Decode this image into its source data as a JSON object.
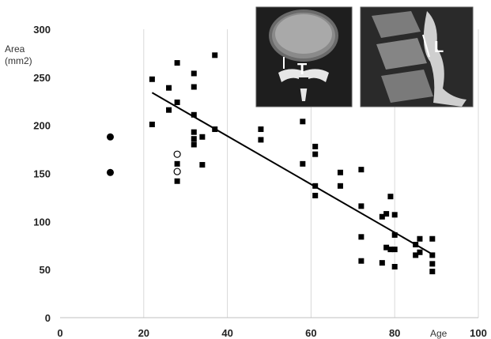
{
  "chart_data": {
    "type": "scatter",
    "title": "",
    "xlabel": "Age",
    "ylabel": "Area\n(mm2)",
    "ylabel_lines": [
      "Area",
      "(mm2)"
    ],
    "xlim": [
      0,
      100
    ],
    "ylim": [
      0,
      300
    ],
    "x_ticks": [
      0,
      20,
      40,
      60,
      80,
      100
    ],
    "y_ticks": [
      0,
      50,
      100,
      150,
      200,
      250,
      300
    ],
    "grid": "vertical",
    "legend": "none",
    "series": [
      {
        "marker": "square-filled",
        "color": "#000000",
        "points": [
          [
            22,
            248
          ],
          [
            22,
            201
          ],
          [
            26,
            239
          ],
          [
            26,
            216
          ],
          [
            28,
            265
          ],
          [
            28,
            224
          ],
          [
            28,
            160
          ],
          [
            28,
            142
          ],
          [
            32,
            254
          ],
          [
            32,
            240
          ],
          [
            32,
            211
          ],
          [
            32,
            193
          ],
          [
            32,
            186
          ],
          [
            32,
            180
          ],
          [
            34,
            188
          ],
          [
            34,
            159
          ],
          [
            37,
            273
          ],
          [
            37,
            196
          ],
          [
            48,
            196
          ],
          [
            48,
            185
          ],
          [
            58,
            204
          ],
          [
            58,
            160
          ],
          [
            61,
            178
          ],
          [
            61,
            170
          ],
          [
            61,
            137
          ],
          [
            61,
            127
          ],
          [
            67,
            151
          ],
          [
            67,
            137
          ],
          [
            72,
            154
          ],
          [
            72,
            116
          ],
          [
            72,
            84
          ],
          [
            72,
            59
          ],
          [
            77,
            105
          ],
          [
            77,
            57
          ],
          [
            78,
            108
          ],
          [
            78,
            73
          ],
          [
            79,
            126
          ],
          [
            79,
            71
          ],
          [
            80,
            107
          ],
          [
            80,
            86
          ],
          [
            80,
            71
          ],
          [
            80,
            53
          ],
          [
            85,
            76
          ],
          [
            85,
            65
          ],
          [
            86,
            82
          ],
          [
            86,
            68
          ],
          [
            89,
            82
          ],
          [
            89,
            65
          ],
          [
            89,
            56
          ],
          [
            89,
            48
          ]
        ]
      },
      {
        "marker": "circle-filled",
        "color": "#000000",
        "points": [
          [
            12,
            188
          ],
          [
            12,
            151
          ]
        ]
      },
      {
        "marker": "circle-open",
        "color": "#000000",
        "points": [
          [
            28,
            170
          ],
          [
            28,
            152
          ]
        ]
      }
    ],
    "trendline": {
      "x": [
        22,
        89
      ],
      "y": [
        234,
        66
      ],
      "color": "#000000"
    },
    "insets": [
      {
        "label": "T",
        "description_icon": "axial-ct-vertebra-icon"
      },
      {
        "label": "L",
        "description_icon": "sagittal-ct-spine-icon"
      }
    ]
  }
}
